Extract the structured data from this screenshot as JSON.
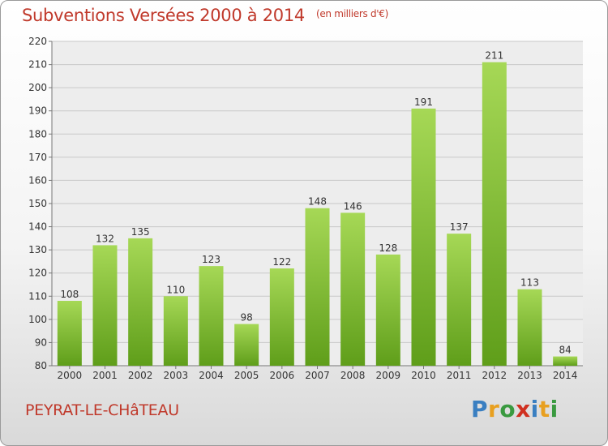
{
  "header": {
    "title": "Subventions Versées 2000 à 2014",
    "subtitle": "(en milliers d'€)"
  },
  "footer": {
    "commune": "PEYRAT-LE-CHâTEAU",
    "logo_letters": [
      "P",
      "r",
      "o",
      "x",
      "i",
      "t",
      "i"
    ],
    "logo_colors": [
      "#3a7fc1",
      "#e8a020",
      "#3a9a40",
      "#d03020",
      "#3a7fc1",
      "#e8a020",
      "#3a9a40"
    ]
  },
  "chart_data": {
    "type": "bar",
    "categories": [
      "2000",
      "2001",
      "2002",
      "2003",
      "2004",
      "2005",
      "2006",
      "2007",
      "2008",
      "2009",
      "2010",
      "2011",
      "2012",
      "2013",
      "2014"
    ],
    "values": [
      108,
      132,
      135,
      110,
      123,
      98,
      122,
      148,
      146,
      128,
      191,
      137,
      211,
      113,
      84
    ],
    "title": "Subventions Versées 2000 à 2014",
    "subtitle": "(en milliers d'€)",
    "ylim": [
      80,
      220
    ],
    "yticks": [
      80,
      90,
      100,
      110,
      120,
      130,
      140,
      150,
      160,
      170,
      180,
      190,
      200,
      210,
      220
    ],
    "grid": true,
    "bar_color": "#8cc63f"
  }
}
